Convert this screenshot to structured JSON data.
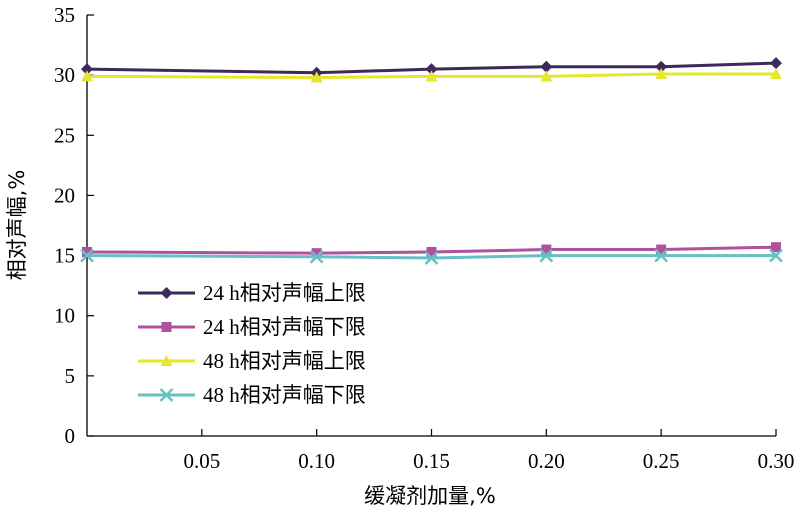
{
  "chart_data": {
    "type": "line",
    "xlabel": "缓凝剂加量,%",
    "ylabel": "相对声幅,%",
    "x_ticks": [
      "0.05",
      "0.10",
      "0.15",
      "0.20",
      "0.25",
      "0.30"
    ],
    "y_ticks": [
      "0",
      "5",
      "10",
      "15",
      "20",
      "25",
      "30",
      "35"
    ],
    "xlim": [
      0,
      0.3
    ],
    "ylim": [
      0,
      35
    ],
    "grid": false,
    "legend_position": "lower-left",
    "series": [
      {
        "name": "24 h相对声幅上限",
        "color": "#3b2a5a",
        "marker": "diamond",
        "x": [
          0,
          0.1,
          0.15,
          0.2,
          0.25,
          0.3
        ],
        "y": [
          30.5,
          30.2,
          30.5,
          30.7,
          30.7,
          31.0
        ]
      },
      {
        "name": "24 h相对声幅下限",
        "color": "#b0509e",
        "marker": "square",
        "x": [
          0,
          0.1,
          0.15,
          0.2,
          0.25,
          0.3
        ],
        "y": [
          15.3,
          15.2,
          15.3,
          15.5,
          15.5,
          15.7
        ]
      },
      {
        "name": "48 h相对声幅上限",
        "color": "#e6e62e",
        "marker": "triangle",
        "x": [
          0,
          0.1,
          0.15,
          0.2,
          0.25,
          0.3
        ],
        "y": [
          29.9,
          29.8,
          29.9,
          29.9,
          30.1,
          30.1
        ]
      },
      {
        "name": "48 h相对声幅下限",
        "color": "#66c0c4",
        "marker": "x",
        "x": [
          0,
          0.1,
          0.15,
          0.2,
          0.25,
          0.3
        ],
        "y": [
          15.0,
          14.9,
          14.8,
          15.0,
          15.0,
          15.0
        ]
      }
    ]
  }
}
